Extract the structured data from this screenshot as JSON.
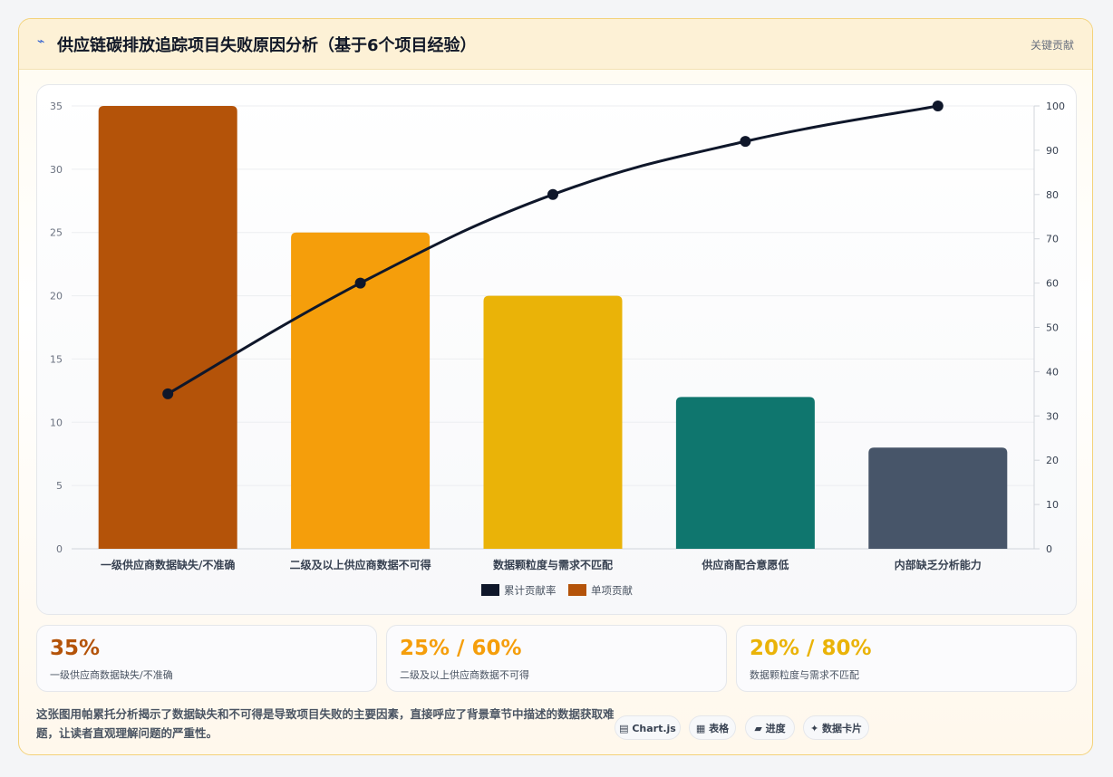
{
  "header": {
    "icon": "lightning-icon",
    "title": "供应链碳排放追踪项目失败原因分析（基于6个项目经验）",
    "tag": "关键贡献"
  },
  "chart_data": {
    "type": "bar",
    "categories": [
      "一级供应商数据缺失/不准确",
      "二级及以上供应商数据不可得",
      "数据颗粒度与需求不匹配",
      "供应商配合意愿低",
      "内部缺乏分析能力"
    ],
    "series": [
      {
        "name": "单项贡献",
        "type": "bar",
        "values": [
          35,
          25,
          20,
          12,
          8
        ],
        "colors": [
          "#b45309",
          "#f59e0b",
          "#eab308",
          "#0f766e",
          "#475569"
        ],
        "axis": "left"
      },
      {
        "name": "累计贡献率",
        "type": "line",
        "values": [
          35,
          60,
          80,
          92,
          100
        ],
        "color": "#0f172a",
        "axis": "right"
      }
    ],
    "y_left": {
      "min": 0,
      "max": 35,
      "ticks": [
        0,
        5,
        10,
        15,
        20,
        25,
        30,
        35
      ]
    },
    "y_right": {
      "min": 0,
      "max": 100,
      "ticks": [
        0,
        10,
        20,
        30,
        40,
        50,
        60,
        70,
        80,
        90,
        100
      ]
    },
    "grid": true,
    "legend_position": "bottom",
    "legend": [
      {
        "label": "累计贡献率",
        "color": "#0f172a"
      },
      {
        "label": "单项贡献",
        "color": "#b45309"
      }
    ]
  },
  "stats": [
    {
      "value": "35%",
      "label": "一级供应商数据缺失/不准确",
      "color": "#b45309"
    },
    {
      "value": "25% / 60%",
      "label": "二级及以上供应商数据不可得",
      "color": "#f59e0b"
    },
    {
      "value": "20% / 80%",
      "label": "数据颗粒度与需求不匹配",
      "color": "#eab308"
    }
  ],
  "note": "这张图用帕累托分析揭示了数据缺失和不可得是导致项目失败的主要因素，直接呼应了背景章节中描述的数据获取难题，让读者直观理解问题的严重性。",
  "chips": [
    "▤ Chart.js",
    "▦ 表格",
    "▰ 进度",
    "✦ 数据卡片"
  ]
}
